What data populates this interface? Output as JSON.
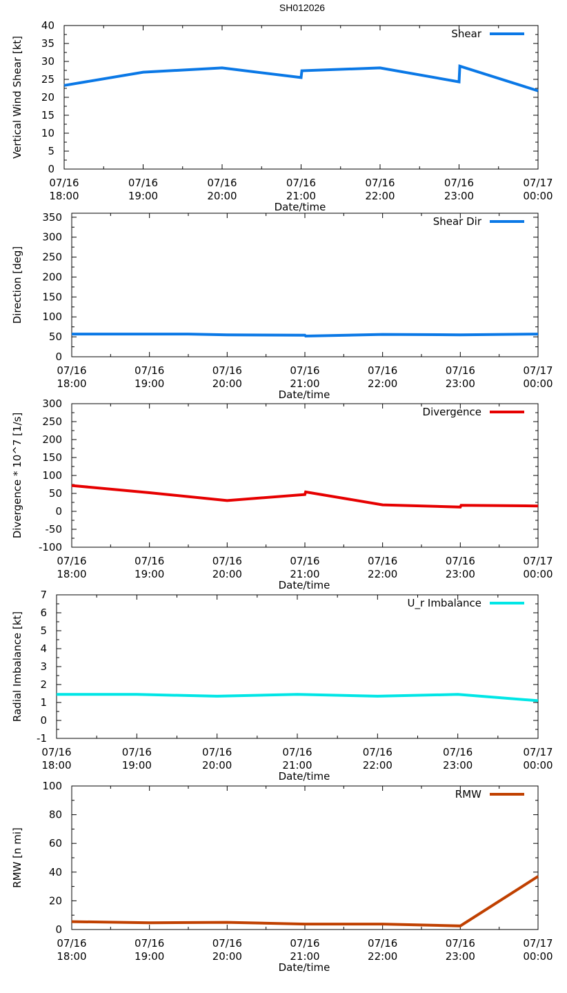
{
  "figure": {
    "title": "SH012026"
  },
  "chart_data": [
    {
      "type": "line",
      "ylabel": "Vertical Wind Shear [kt]",
      "xlabel": "Date/time",
      "ylim": [
        0,
        40
      ],
      "yticks": [
        0,
        5,
        10,
        15,
        20,
        25,
        30,
        35,
        40
      ],
      "xlim": [
        0,
        6
      ],
      "xticks": [
        {
          "x": 0,
          "date": "07/16",
          "time": "18:00"
        },
        {
          "x": 1,
          "date": "07/16",
          "time": "19:00"
        },
        {
          "x": 2,
          "date": "07/16",
          "time": "20:00"
        },
        {
          "x": 3,
          "date": "07/16",
          "time": "21:00"
        },
        {
          "x": 4,
          "date": "07/16",
          "time": "22:00"
        },
        {
          "x": 5,
          "date": "07/16",
          "time": "23:00"
        },
        {
          "x": 6,
          "date": "07/17",
          "time": "00:00"
        }
      ],
      "legend_position": "top-right",
      "series": [
        {
          "name": "Shear",
          "color": "#0a78e6",
          "points": [
            [
              0,
              23.3
            ],
            [
              1,
              27
            ],
            [
              2,
              28.2
            ],
            [
              3,
              25.5
            ],
            [
              3.01,
              27.4
            ],
            [
              4,
              28.2
            ],
            [
              5,
              24.3
            ],
            [
              5.01,
              28.7
            ],
            [
              6,
              21.8
            ]
          ]
        }
      ]
    },
    {
      "type": "line",
      "ylabel": "Direction [deg]",
      "xlabel": "Date/time",
      "ylim": [
        0,
        360
      ],
      "yticks": [
        0,
        50,
        100,
        150,
        200,
        250,
        300,
        350
      ],
      "xlim": [
        0,
        6
      ],
      "xticks": [
        {
          "x": 0,
          "date": "07/16",
          "time": "18:00"
        },
        {
          "x": 1,
          "date": "07/16",
          "time": "19:00"
        },
        {
          "x": 2,
          "date": "07/16",
          "time": "20:00"
        },
        {
          "x": 3,
          "date": "07/16",
          "time": "21:00"
        },
        {
          "x": 4,
          "date": "07/16",
          "time": "22:00"
        },
        {
          "x": 5,
          "date": "07/16",
          "time": "23:00"
        },
        {
          "x": 6,
          "date": "07/17",
          "time": "00:00"
        }
      ],
      "legend_position": "top-right",
      "series": [
        {
          "name": "Shear Dir",
          "color": "#0a78e6",
          "points": [
            [
              0,
              57
            ],
            [
              1.5,
              57
            ],
            [
              2,
              55
            ],
            [
              3,
              54
            ],
            [
              3.01,
              52
            ],
            [
              4,
              56
            ],
            [
              5,
              55
            ],
            [
              6,
              57
            ]
          ]
        }
      ]
    },
    {
      "type": "line",
      "ylabel": "Divergence * 10^7 [1/s]",
      "xlabel": "Date/time",
      "ylim": [
        -100,
        300
      ],
      "yticks": [
        -100,
        -50,
        0,
        50,
        100,
        150,
        200,
        250,
        300
      ],
      "xlim": [
        0,
        6
      ],
      "xticks": [
        {
          "x": 0,
          "date": "07/16",
          "time": "18:00"
        },
        {
          "x": 1,
          "date": "07/16",
          "time": "19:00"
        },
        {
          "x": 2,
          "date": "07/16",
          "time": "20:00"
        },
        {
          "x": 3,
          "date": "07/16",
          "time": "21:00"
        },
        {
          "x": 4,
          "date": "07/16",
          "time": "22:00"
        },
        {
          "x": 5,
          "date": "07/16",
          "time": "23:00"
        },
        {
          "x": 6,
          "date": "07/17",
          "time": "00:00"
        }
      ],
      "legend_position": "top-right",
      "series": [
        {
          "name": "Divergence",
          "color": "#e60000",
          "points": [
            [
              0,
              72
            ],
            [
              1,
              52
            ],
            [
              2,
              30
            ],
            [
              3,
              47
            ],
            [
              3.01,
              54
            ],
            [
              4,
              18
            ],
            [
              5,
              12
            ],
            [
              5.01,
              17
            ],
            [
              6,
              15
            ]
          ]
        }
      ]
    },
    {
      "type": "line",
      "ylabel": "Radial Imbalance [kt]",
      "xlabel": "Date/time",
      "ylim": [
        -1,
        7
      ],
      "yticks": [
        -1,
        0,
        1,
        2,
        3,
        4,
        5,
        6,
        7
      ],
      "xlim": [
        0,
        6
      ],
      "xticks": [
        {
          "x": 0,
          "date": "07/16",
          "time": "18:00"
        },
        {
          "x": 1,
          "date": "07/16",
          "time": "19:00"
        },
        {
          "x": 2,
          "date": "07/16",
          "time": "20:00"
        },
        {
          "x": 3,
          "date": "07/16",
          "time": "21:00"
        },
        {
          "x": 4,
          "date": "07/16",
          "time": "22:00"
        },
        {
          "x": 5,
          "date": "07/16",
          "time": "23:00"
        },
        {
          "x": 6,
          "date": "07/17",
          "time": "00:00"
        }
      ],
      "legend_position": "top-right",
      "series": [
        {
          "name": "U_r Imbalance",
          "color": "#00e6e6",
          "points": [
            [
              0,
              1.45
            ],
            [
              1,
              1.45
            ],
            [
              2,
              1.35
            ],
            [
              3,
              1.45
            ],
            [
              4,
              1.35
            ],
            [
              5,
              1.45
            ],
            [
              6,
              1.1
            ]
          ]
        }
      ]
    },
    {
      "type": "line",
      "ylabel": "RMW [n mi]",
      "xlabel": "Date/time",
      "ylim": [
        0,
        100
      ],
      "yticks": [
        0,
        20,
        40,
        60,
        80,
        100
      ],
      "xlim": [
        0,
        6
      ],
      "xticks": [
        {
          "x": 0,
          "date": "07/16",
          "time": "18:00"
        },
        {
          "x": 1,
          "date": "07/16",
          "time": "19:00"
        },
        {
          "x": 2,
          "date": "07/16",
          "time": "20:00"
        },
        {
          "x": 3,
          "date": "07/16",
          "time": "21:00"
        },
        {
          "x": 4,
          "date": "07/16",
          "time": "22:00"
        },
        {
          "x": 5,
          "date": "07/16",
          "time": "23:00"
        },
        {
          "x": 6,
          "date": "07/17",
          "time": "00:00"
        }
      ],
      "legend_position": "top-right",
      "series": [
        {
          "name": "RMW",
          "color": "#c04000",
          "points": [
            [
              0,
              5.5
            ],
            [
              1,
              4.7
            ],
            [
              2,
              5
            ],
            [
              3,
              3.8
            ],
            [
              4,
              3.8
            ],
            [
              5,
              2.5
            ],
            [
              6,
              37
            ]
          ]
        }
      ]
    }
  ]
}
